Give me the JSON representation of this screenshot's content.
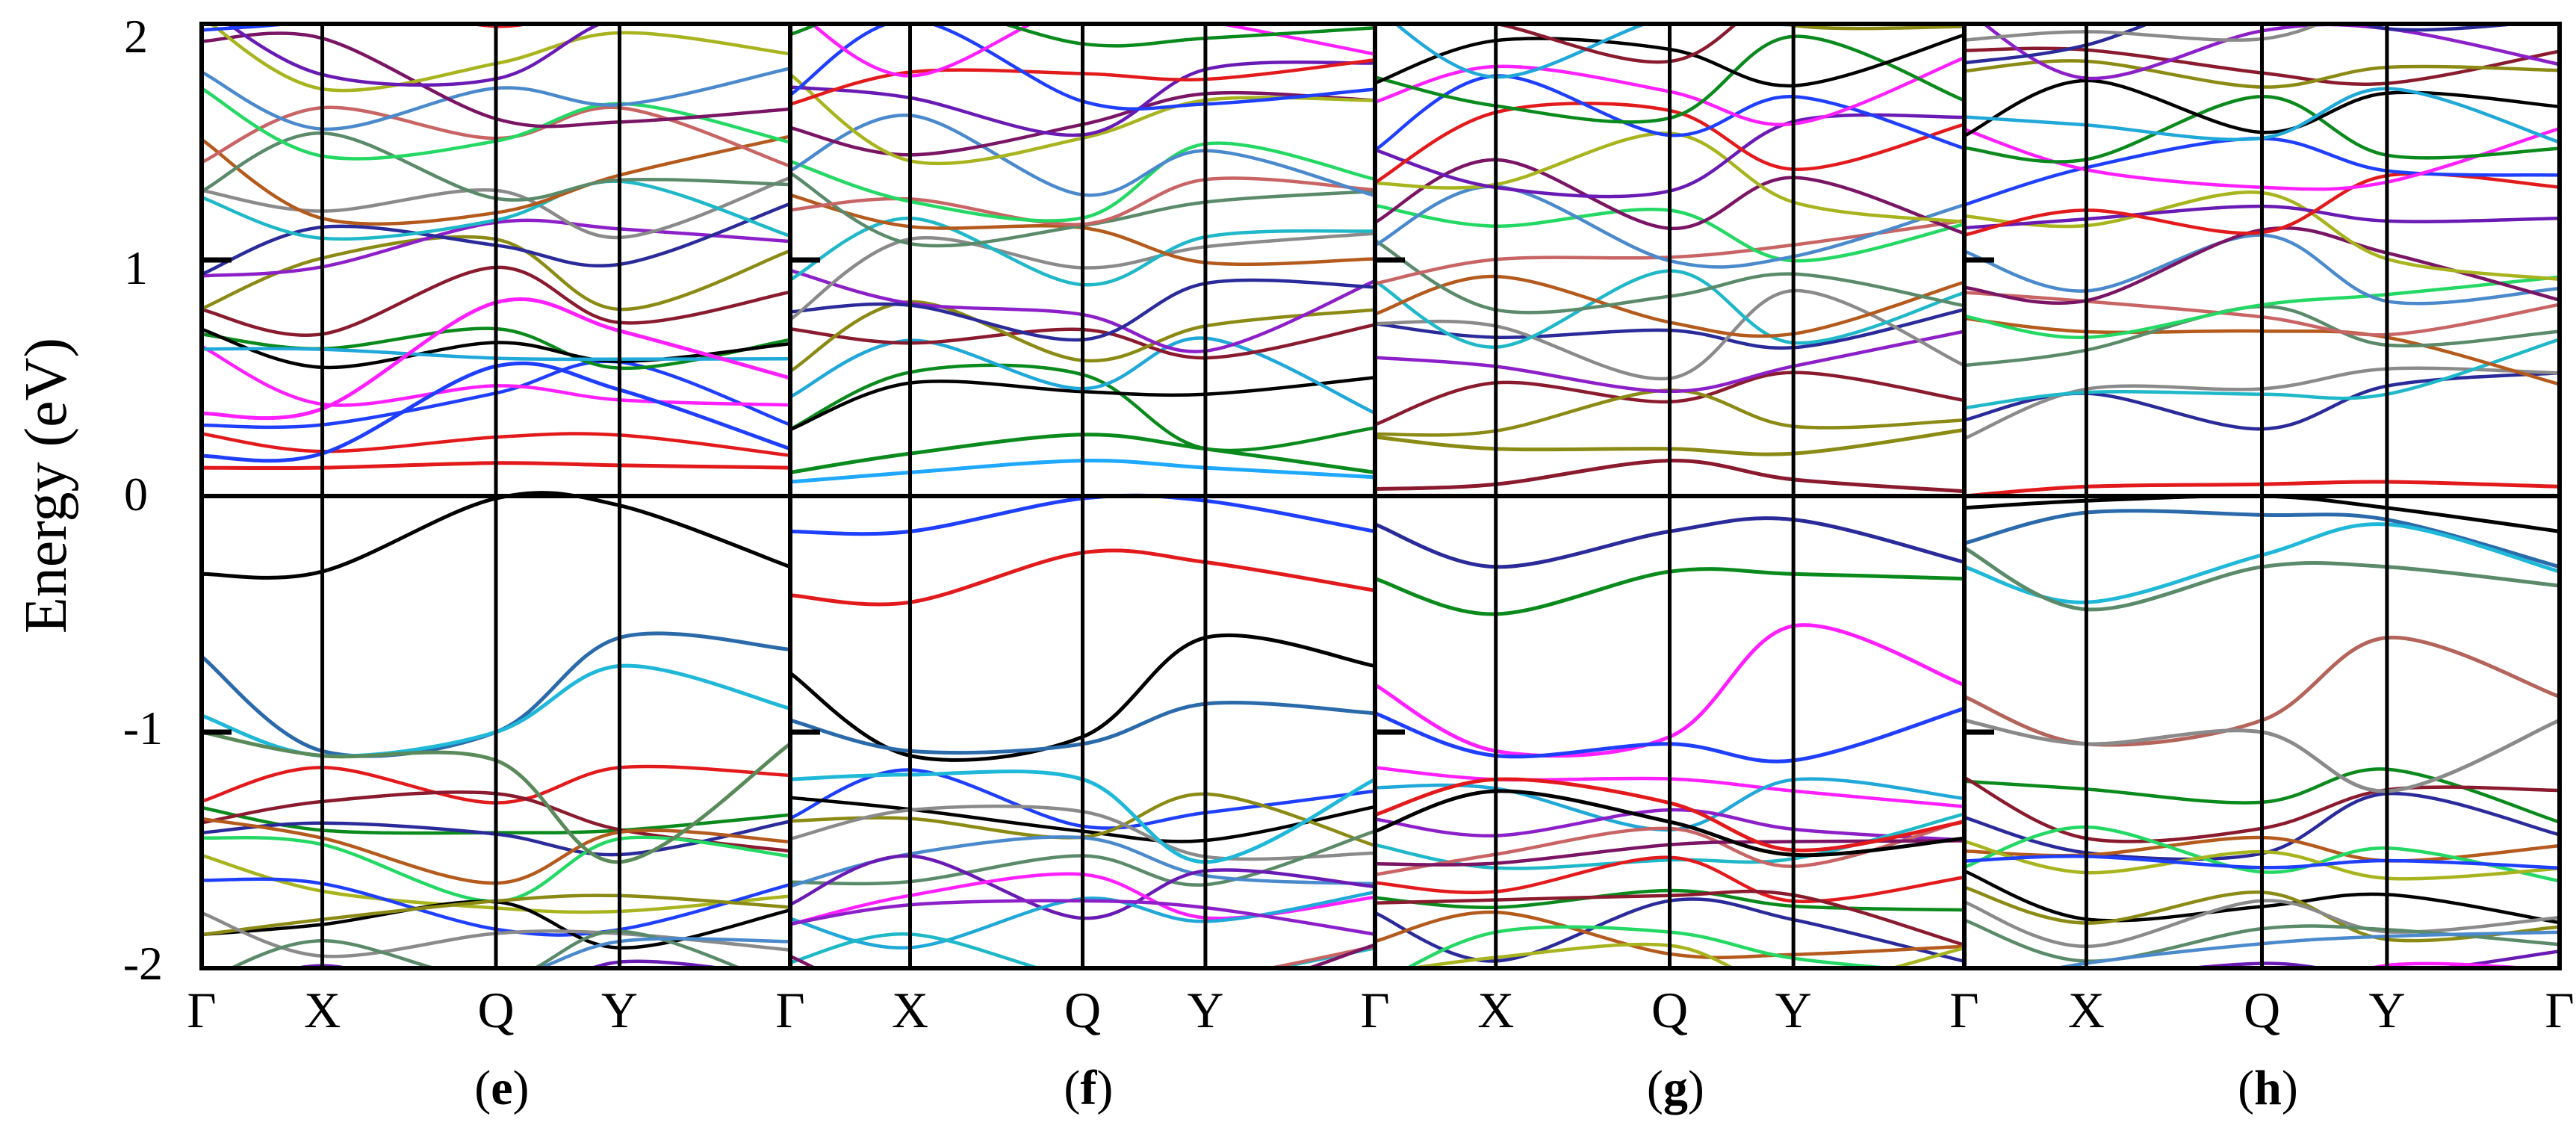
{
  "figure": {
    "ylabel": "Energy (eV)",
    "yticks": [
      "2",
      "1",
      "0",
      "-1",
      "-2"
    ],
    "kpath": [
      "Γ",
      "X",
      "Q",
      "Y",
      "Γ"
    ],
    "colors": [
      "#e31a1c",
      "#1f3fff",
      "#ff1fff",
      "#0a8a1c",
      "#000000",
      "#1fa8d8",
      "#8a1a2e",
      "#8a8a14",
      "#8c1fc8",
      "#2a2a9a",
      "#8a8a8a",
      "#1fb8c8",
      "#b45a1c",
      "#5a8a6a",
      "#c86464",
      "#24d864",
      "#4a8acc",
      "#7a1464",
      "#a8b41e",
      "#6a1ab4"
    ]
  },
  "chart_data": [
    {
      "type": "line",
      "panel": "e",
      "label_open": "(",
      "label_letter": "e",
      "label_close": ")",
      "x_ticks": [
        "Γ",
        "X",
        "Q",
        "Y",
        "Γ"
      ],
      "ylabel": "Energy (eV)",
      "ylim": [
        -2,
        2
      ],
      "fermi_level": 0,
      "highlighted_bands": [
        {
          "name": "",
          "color": "#e31a1c",
          "values": [
            0.12,
            0.12,
            0.14,
            0.13,
            0.12
          ]
        },
        {
          "name": "",
          "color": "#1f3fff",
          "values": [
            0.17,
            0.18,
            0.55,
            0.45,
            0.2
          ]
        },
        {
          "name": "",
          "color": "#ff1fff",
          "values": [
            0.35,
            0.37,
            0.82,
            0.7,
            0.5
          ]
        },
        {
          "name": "",
          "color": "#000000",
          "values": [
            -0.33,
            -0.32,
            -0.01,
            -0.04,
            -0.3
          ]
        },
        {
          "name": "",
          "color": "#2a6aaa",
          "values": [
            -0.68,
            -1.08,
            -1.0,
            -0.6,
            -0.65
          ]
        },
        {
          "name": "",
          "color": "#1fb8d8",
          "values": [
            -0.93,
            -1.1,
            -1.0,
            -0.72,
            -0.9
          ]
        },
        {
          "name": "",
          "color": "#5a8a5a",
          "values": [
            -1.0,
            -1.1,
            -1.12,
            -1.55,
            -1.05
          ]
        }
      ],
      "conduction_band_count": 22,
      "valence_band_count": 14
    },
    {
      "type": "line",
      "panel": "f",
      "label_open": "(",
      "label_letter": "f",
      "label_close": ")",
      "x_ticks": [
        "Γ",
        "X",
        "Q",
        "Y",
        "Γ"
      ],
      "ylabel": "",
      "ylim": [
        -2,
        2
      ],
      "fermi_level": 0,
      "highlighted_bands": [
        {
          "name": "",
          "color": "#1fa8ff",
          "values": [
            0.06,
            0.1,
            0.15,
            0.12,
            0.08
          ]
        },
        {
          "name": "",
          "color": "#0a8a1c",
          "values": [
            0.1,
            0.18,
            0.26,
            0.2,
            0.1
          ]
        },
        {
          "name": "",
          "color": "#1f3fff",
          "values": [
            -0.15,
            -0.15,
            -0.01,
            -0.02,
            -0.15
          ]
        },
        {
          "name": "",
          "color": "#e31a1c",
          "values": [
            -0.42,
            -0.45,
            -0.24,
            -0.28,
            -0.4
          ]
        },
        {
          "name": "",
          "color": "#000000",
          "values": [
            -0.75,
            -1.1,
            -1.02,
            -0.6,
            -0.72
          ]
        },
        {
          "name": "",
          "color": "#2a6aaa",
          "values": [
            -0.95,
            -1.08,
            -1.05,
            -0.88,
            -0.92
          ]
        },
        {
          "name": "",
          "color": "#1fb8d8",
          "values": [
            -1.2,
            -1.18,
            -1.2,
            -1.55,
            -1.2
          ]
        }
      ],
      "conduction_band_count": 22,
      "valence_band_count": 14
    },
    {
      "type": "line",
      "panel": "g",
      "label_open": "(",
      "label_letter": "g",
      "label_close": ")",
      "x_ticks": [
        "Γ",
        "X",
        "Q",
        "Y",
        "Γ"
      ],
      "ylabel": "",
      "ylim": [
        -2,
        2
      ],
      "fermi_level": 0,
      "highlighted_bands": [
        {
          "name": "",
          "color": "#8a1a2e",
          "values": [
            0.03,
            0.05,
            0.15,
            0.07,
            0.02
          ]
        },
        {
          "name": "",
          "color": "#8a8a14",
          "values": [
            0.25,
            0.2,
            0.2,
            0.18,
            0.28
          ]
        },
        {
          "name": "",
          "color": "#2a2a9a",
          "values": [
            -0.12,
            -0.3,
            -0.15,
            -0.1,
            -0.28
          ]
        },
        {
          "name": "",
          "color": "#0a8a1c",
          "values": [
            -0.35,
            -0.5,
            -0.32,
            -0.33,
            -0.35
          ]
        },
        {
          "name": "",
          "color": "#ff1fff",
          "values": [
            -0.8,
            -1.08,
            -1.02,
            -0.55,
            -0.8
          ]
        },
        {
          "name": "",
          "color": "#1f3fff",
          "values": [
            -0.92,
            -1.1,
            -1.05,
            -1.12,
            -0.9
          ]
        },
        {
          "name": "",
          "color": "#e31a1c",
          "values": [
            -1.35,
            -1.2,
            -1.3,
            -1.5,
            -1.38
          ]
        },
        {
          "name": "",
          "color": "#000000",
          "values": [
            -1.42,
            -1.25,
            -1.38,
            -1.52,
            -1.45
          ]
        }
      ],
      "conduction_band_count": 22,
      "valence_band_count": 14
    },
    {
      "type": "line",
      "panel": "h",
      "label_open": "(",
      "label_letter": "h",
      "label_close": ")",
      "x_ticks": [
        "Γ",
        "X",
        "Q",
        "Y",
        "Γ"
      ],
      "ylabel": "",
      "ylim": [
        -2,
        2
      ],
      "fermi_level": 0,
      "highlighted_bands": [
        {
          "name": "",
          "color": "#e31a1c",
          "values": [
            0.0,
            0.04,
            0.05,
            0.06,
            0.04
          ]
        },
        {
          "name": "",
          "color": "#000000",
          "values": [
            -0.05,
            -0.02,
            0.0,
            -0.05,
            -0.15
          ]
        },
        {
          "name": "",
          "color": "#2a6aaa",
          "values": [
            -0.2,
            -0.07,
            -0.08,
            -0.1,
            -0.3
          ]
        },
        {
          "name": "",
          "color": "#1fb8d8",
          "values": [
            -0.3,
            -0.45,
            -0.25,
            -0.12,
            -0.32
          ]
        },
        {
          "name": "",
          "color": "#5a8a6a",
          "values": [
            -0.22,
            -0.48,
            -0.3,
            -0.3,
            -0.38
          ]
        },
        {
          "name": "",
          "color": "#b4645a",
          "values": [
            -0.85,
            -1.05,
            -0.95,
            -0.6,
            -0.85
          ]
        },
        {
          "name": "",
          "color": "#8a8a8a",
          "values": [
            -0.95,
            -1.05,
            -1.0,
            -1.25,
            -0.95
          ]
        }
      ],
      "conduction_band_count": 22,
      "valence_band_count": 14
    }
  ]
}
